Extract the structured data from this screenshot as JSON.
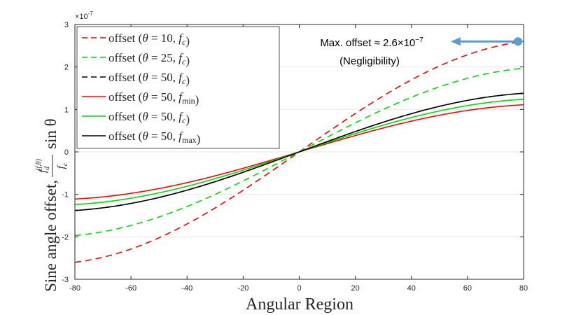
{
  "chart_data": {
    "type": "line",
    "xlabel": "Angular Region",
    "ylabel": "Sine angle offset, (f_d^(f,θ) / f_c) sin θ",
    "ylabel_parts": {
      "prefix": "Sine angle offset,",
      "frac_num": "f",
      "frac_num_sub": "d",
      "frac_num_sup": "(f,θ)",
      "frac_den": "f",
      "frac_den_sub": "c",
      "suffix": "sin θ"
    },
    "xlim": [
      -80,
      80
    ],
    "ylim": [
      -3,
      3
    ],
    "y_exponent": "×10",
    "y_exponent_power": "-7",
    "xticks": [
      "-80",
      "-60",
      "-40",
      "-20",
      "0",
      "20",
      "40",
      "60",
      "80"
    ],
    "yticks": [
      "-3",
      "-2",
      "-1",
      "0",
      "1",
      "2",
      "3"
    ],
    "grid": true,
    "legend_position": "top-left",
    "series": [
      {
        "name": "offset (θ = 10, f = f_c)",
        "label": {
          "theta": "10",
          "f": "f",
          "sub": "c"
        },
        "color": "#ff0000",
        "dash": "dashed",
        "amplitude": 2.6
      },
      {
        "name": "offset (θ = 25, f = f_c)",
        "label": {
          "theta": "25",
          "f": "f",
          "sub": "c"
        },
        "color": "#00dd00",
        "dash": "dashed",
        "amplitude": 1.97
      },
      {
        "name": "offset (θ = 50, f = f_c)",
        "label": {
          "theta": "50",
          "f": "f",
          "sub": "c"
        },
        "color": "#000000",
        "dash": "dashed",
        "amplitude": 1.38
      },
      {
        "name": "offset (θ = 50, f = f_min)",
        "label": {
          "theta": "50",
          "f": "f",
          "sub": "min"
        },
        "color": "#ff0000",
        "dash": "solid",
        "amplitude": 1.11
      },
      {
        "name": "offset (θ = 50, f = f_c)",
        "label": {
          "theta": "50",
          "f": "f",
          "sub": "c"
        },
        "color": "#00dd00",
        "dash": "solid",
        "amplitude": 1.24
      },
      {
        "name": "offset (θ = 50, f = f_max)",
        "label": {
          "theta": "50",
          "f": "f",
          "sub": "max"
        },
        "color": "#000000",
        "dash": "solid",
        "amplitude": 1.38
      }
    ],
    "annotation": {
      "text_main": "Max. offset ≈ 2.6×10",
      "text_power": "−7",
      "text_sub": "(Negligibility)",
      "arrow_from": [
        78,
        2.6
      ],
      "arrow_to": [
        54,
        2.6
      ],
      "arrow_color": "#5b9bd5"
    }
  }
}
